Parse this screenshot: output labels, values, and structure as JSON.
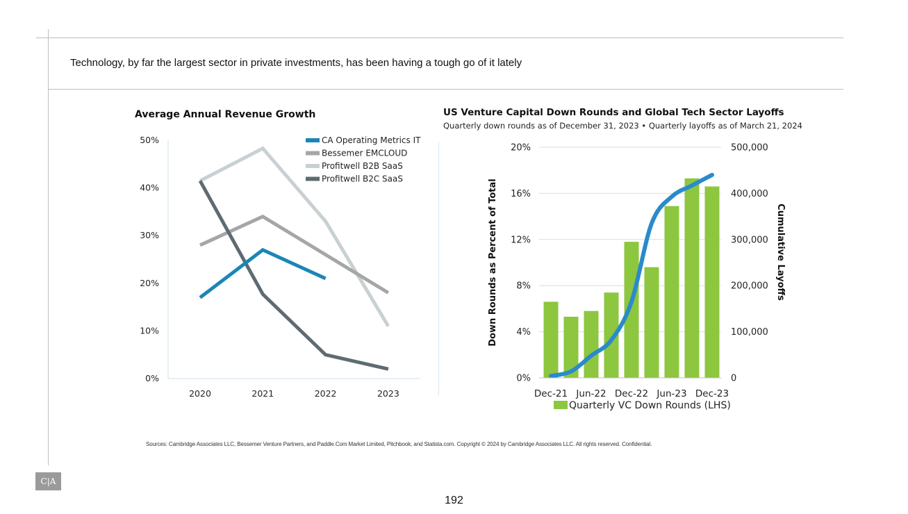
{
  "headline": "Technology, by far the largest sector in private investments, has been having a tough go of it lately",
  "sources": "Sources: Cambridge Associates LLC, Bessemer Venture Partners, and Paddle.Com Market Limited, Pitchbook, and Statista.com. Copyright © 2024 by Cambridge Associates LLC. All rights reserved. Confidential.",
  "logo_text": "C|A",
  "page_number": "192",
  "chart_data": [
    {
      "type": "line",
      "title": "Average Annual Revenue Growth",
      "x": [
        "2020",
        "2021",
        "2022",
        "2023"
      ],
      "ylim": [
        0,
        50
      ],
      "y_ticks": [
        0,
        10,
        20,
        30,
        40,
        50
      ],
      "y_tick_labels": [
        "0%",
        "10%",
        "20%",
        "30%",
        "40%",
        "50%"
      ],
      "grid": false,
      "legend": "top-right",
      "series": [
        {
          "name": "CA Operating Metrics IT",
          "color": "#1a86b6",
          "values": [
            17,
            27,
            21,
            null
          ]
        },
        {
          "name": "Bessemer EMCLOUD",
          "color": "#a6a6a6",
          "values": [
            28,
            34,
            26,
            18
          ]
        },
        {
          "name": "Profitwell B2B SaaS",
          "color": "#c9d0d3",
          "values": [
            41.5,
            48.3,
            33,
            11
          ]
        },
        {
          "name": "Profitwell B2C SaaS",
          "color": "#5e6b73",
          "values": [
            41.5,
            17.7,
            5,
            2
          ]
        }
      ]
    },
    {
      "type": "bar",
      "title": "US Venture Capital Down Rounds and Global Tech Sector Layoffs",
      "subtitle": "Quarterly down rounds as of December 31, 2023 • Quarterly layoffs as of March 21, 2024",
      "ylabel": "Down Rounds as Percent of Total",
      "y2label": "Cumulative Layoffs",
      "ylim": [
        0,
        20
      ],
      "y_ticks": [
        0,
        4,
        8,
        12,
        16,
        20
      ],
      "y_tick_labels": [
        "0%",
        "4%",
        "8%",
        "12%",
        "16%",
        "20%"
      ],
      "y2lim": [
        0,
        500000
      ],
      "y2_ticks": [
        0,
        100000,
        200000,
        300000,
        400000,
        500000
      ],
      "y2_tick_labels": [
        "0",
        "100,000",
        "200,000",
        "300,000",
        "400,000",
        "500,000"
      ],
      "grid": true,
      "legend": "bottom",
      "categories": [
        "Dec-21",
        "Mar-22",
        "Jun-22",
        "Sep-22",
        "Dec-22",
        "Mar-23",
        "Jun-23",
        "Sep-23",
        "Dec-23"
      ],
      "x_tick_labels": [
        "Dec-21",
        "Jun-22",
        "Dec-22",
        "Jun-23",
        "Dec-23"
      ],
      "series": [
        {
          "name": "Quarterly VC Down Rounds (LHS)",
          "color": "#8dc63f",
          "values": [
            6.6,
            5.3,
            5.8,
            7.4,
            11.8,
            9.6,
            14.9,
            17.3,
            16.6
          ]
        }
      ],
      "line_series": {
        "color": "#2a8bc9",
        "x": [
          0,
          1,
          2,
          3,
          4,
          5,
          6,
          7,
          8
        ],
        "values": [
          4000,
          14000,
          48000,
          82000,
          165000,
          335000,
          393000,
          417000,
          440000
        ]
      }
    }
  ]
}
